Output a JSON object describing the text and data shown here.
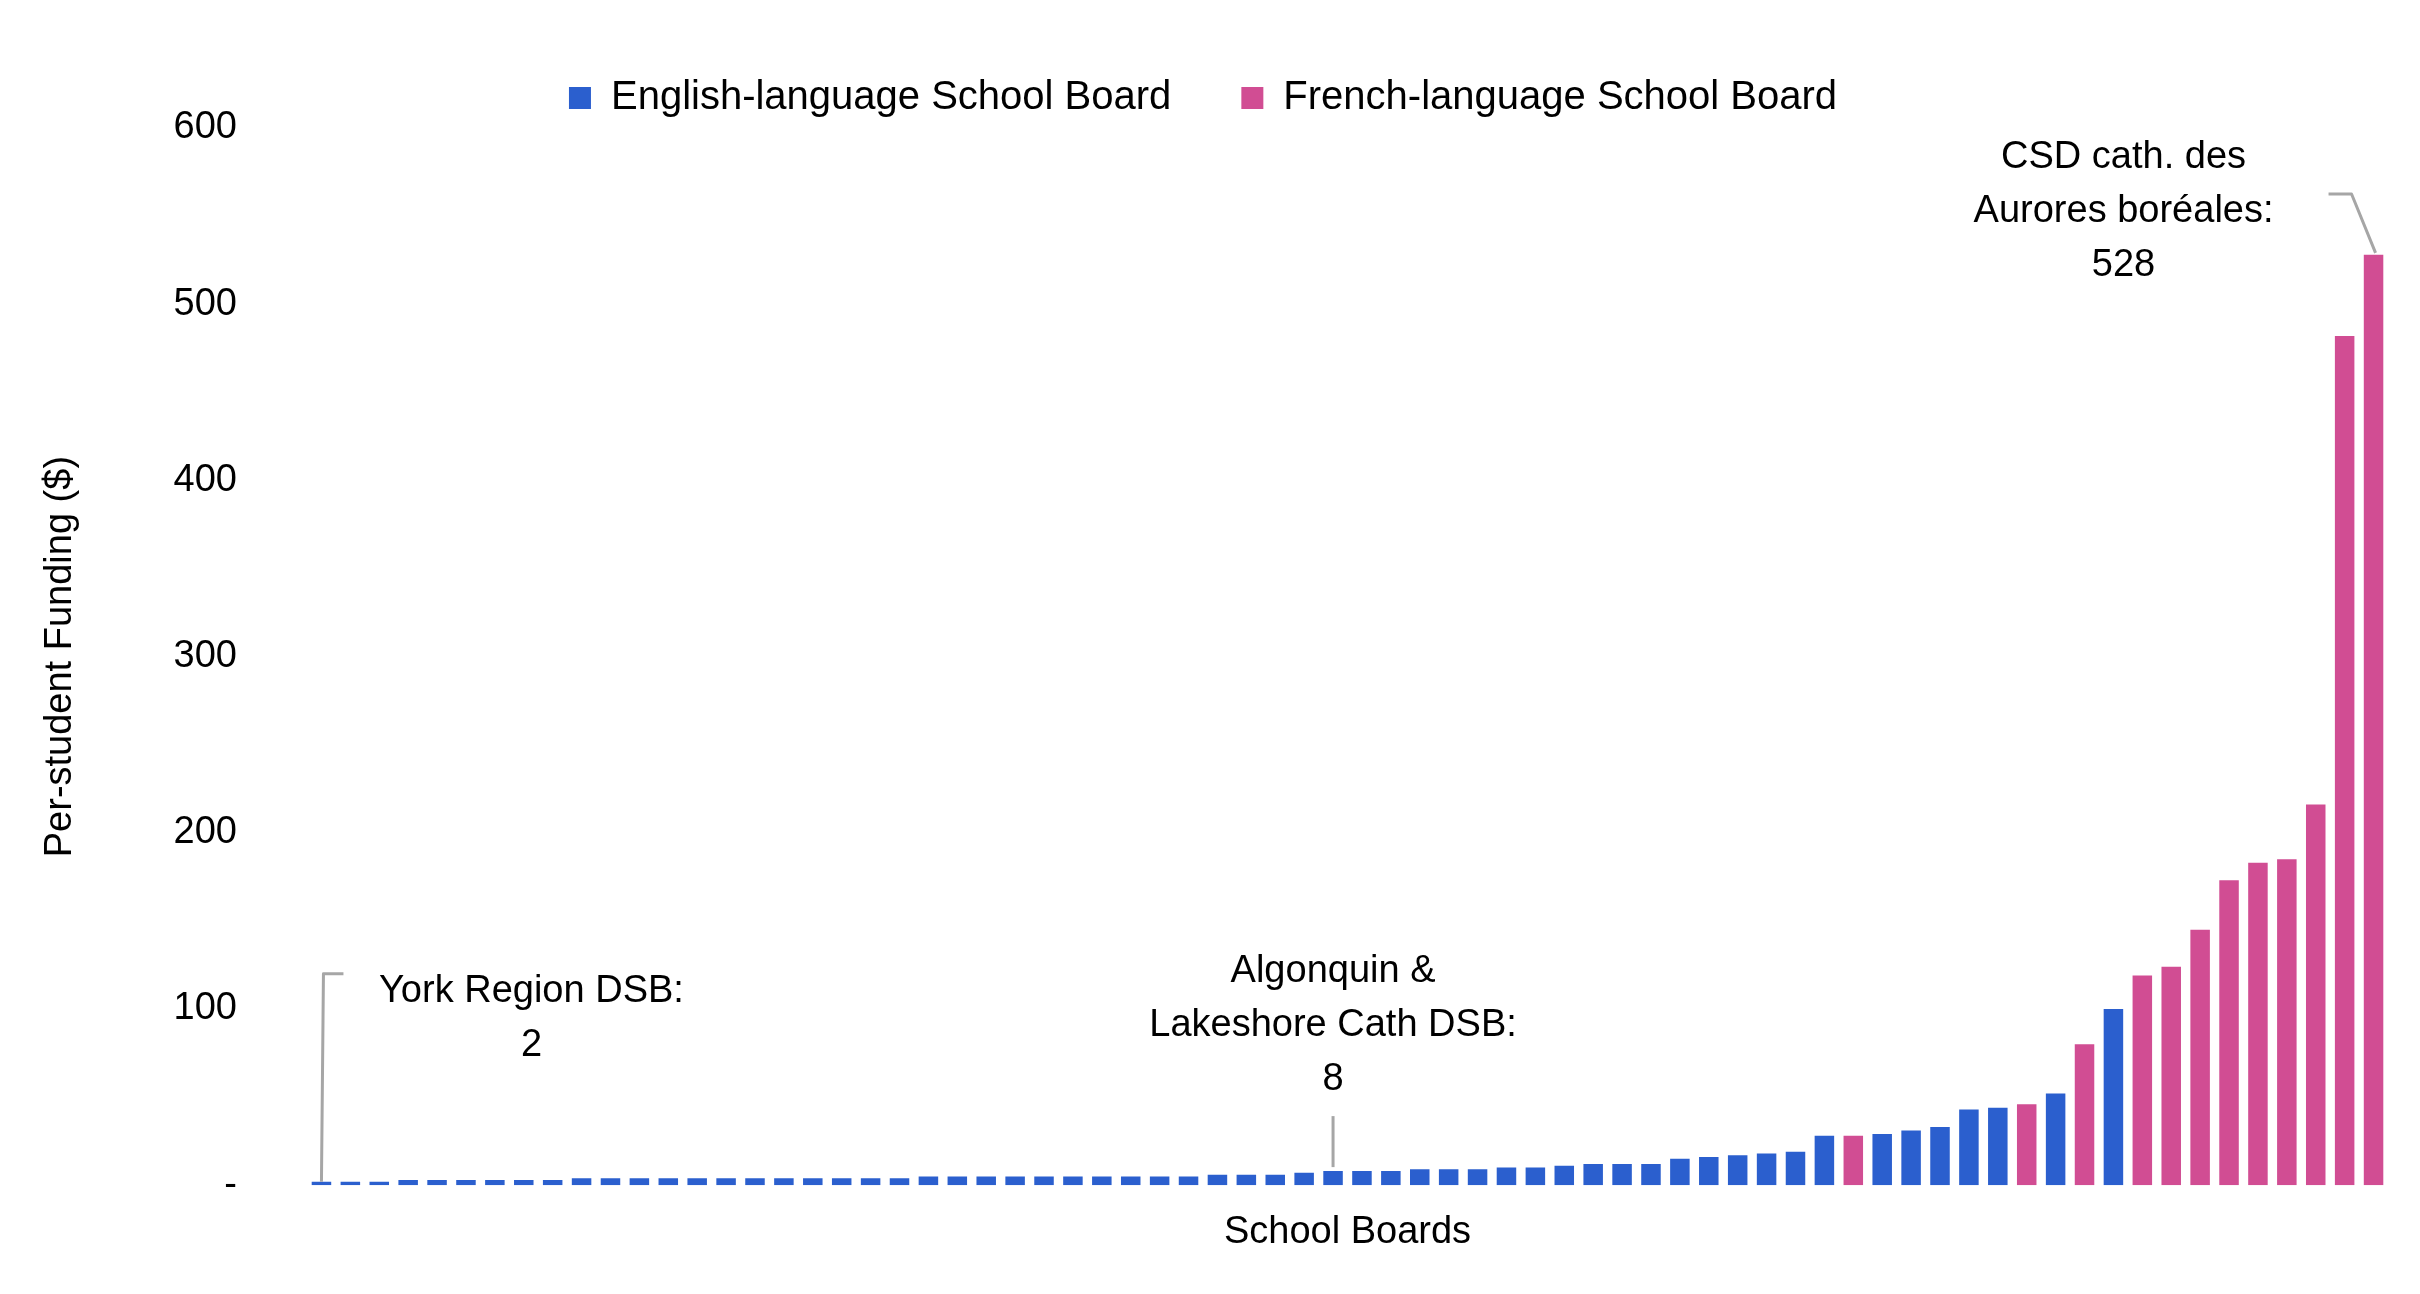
{
  "chart_data": {
    "type": "bar",
    "xlabel": "School Boards",
    "ylabel": "Per-student Funding ($)",
    "categories": [
      null,
      null,
      null,
      null,
      null,
      null,
      null,
      null,
      null,
      null,
      null,
      null,
      null,
      null,
      null,
      null,
      null,
      null,
      null,
      null,
      null,
      null,
      null,
      null,
      null,
      null,
      null,
      null,
      null,
      null,
      null,
      null,
      null,
      null,
      null,
      null,
      null,
      null,
      null,
      null,
      null,
      null,
      null,
      null,
      null,
      null,
      null,
      null,
      null,
      null,
      null,
      null,
      null,
      null,
      null,
      null,
      null,
      null,
      null,
      null,
      null,
      null,
      null,
      null,
      null,
      null,
      null,
      null,
      null,
      null,
      null,
      null
    ],
    "series": [
      {
        "name": "English-language School Board",
        "color": "#2b5fce",
        "values": [
          2,
          2,
          2,
          3,
          3,
          3,
          3,
          3,
          3,
          4,
          4,
          4,
          4,
          4,
          4,
          4,
          4,
          4,
          4,
          4,
          4,
          5,
          5,
          5,
          5,
          5,
          5,
          5,
          5,
          5,
          5,
          6,
          6,
          6,
          7,
          8,
          8,
          8,
          9,
          9,
          9,
          10,
          10,
          11,
          12,
          12,
          12,
          15,
          16,
          17,
          18,
          19,
          28,
          null,
          29,
          31,
          33,
          43,
          44,
          null,
          52,
          null,
          100,
          null,
          null,
          null,
          null,
          null,
          null,
          null,
          null,
          null
        ]
      },
      {
        "name": "French-language School Board",
        "color": "#d14d93",
        "values": [
          null,
          null,
          null,
          null,
          null,
          null,
          null,
          null,
          null,
          null,
          null,
          null,
          null,
          null,
          null,
          null,
          null,
          null,
          null,
          null,
          null,
          null,
          null,
          null,
          null,
          null,
          null,
          null,
          null,
          null,
          null,
          null,
          null,
          null,
          null,
          null,
          null,
          null,
          null,
          null,
          null,
          null,
          null,
          null,
          null,
          null,
          null,
          null,
          null,
          null,
          null,
          null,
          null,
          28,
          null,
          null,
          null,
          null,
          null,
          46,
          null,
          80,
          null,
          119,
          124,
          145,
          173,
          183,
          185,
          216,
          482,
          528
        ]
      }
    ],
    "ylim": [
      0,
      600
    ],
    "yticks": [
      {
        "value": 0,
        "label": "-"
      },
      100,
      200,
      300,
      400,
      500,
      600
    ],
    "grid": false,
    "legend": "top",
    "stacked": true,
    "annotations": [
      "York Region DSB:\n2",
      "Algonquin &\nLakeshore Cath DSB:\n8",
      "CSD cath. des\nAurores boréales:\n528"
    ]
  }
}
